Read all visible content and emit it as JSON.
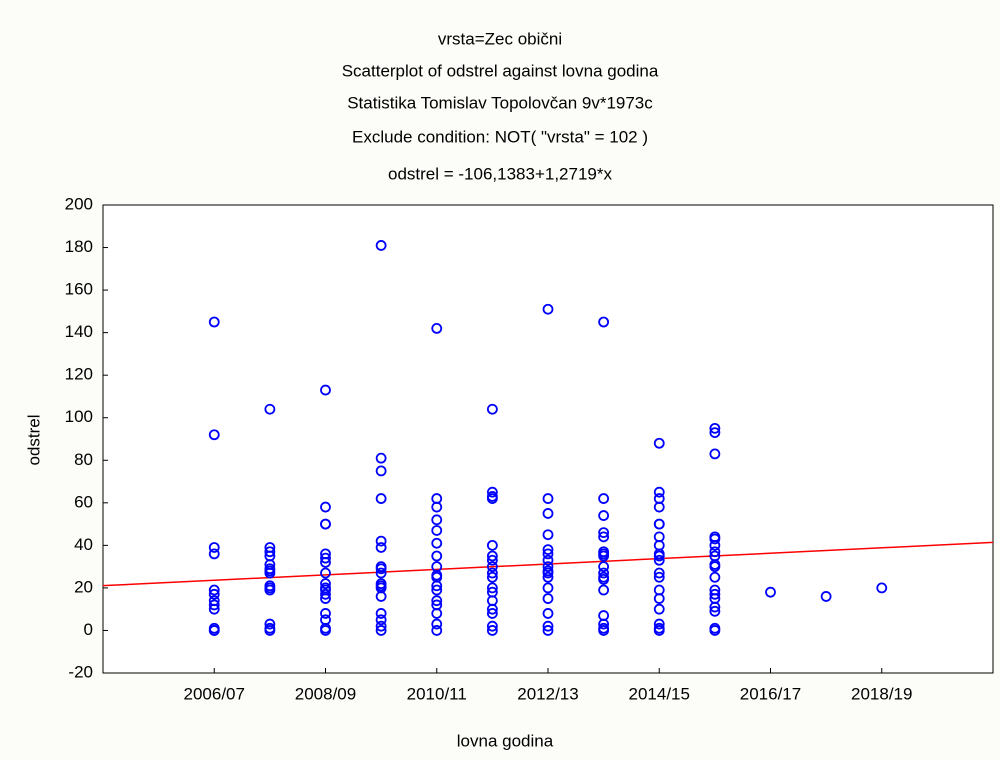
{
  "chart_data": {
    "type": "scatter",
    "title": "vrsta=Zec obični",
    "subtitles": [
      "Scatterplot of odstrel against lovna godina",
      "Statistika Tomislav Topolovčan 9v*1973c",
      "Exclude condition: NOT( \"vrsta\" = 102 )",
      "odstrel = -106,1383+1,2719*x"
    ],
    "x_label": "lovna godina",
    "y_label": "odstrel",
    "xlim": [
      100,
      116
    ],
    "xticks": [
      {
        "value": 102,
        "label": "2006/07"
      },
      {
        "value": 104,
        "label": "2008/09"
      },
      {
        "value": 106,
        "label": "2010/11"
      },
      {
        "value": 108,
        "label": "2012/13"
      },
      {
        "value": 110,
        "label": "2014/15"
      },
      {
        "value": 112,
        "label": "2016/17"
      },
      {
        "value": 114,
        "label": "2018/19"
      }
    ],
    "ylim": [
      -20,
      200
    ],
    "yticks": [
      -20,
      0,
      20,
      40,
      60,
      80,
      100,
      120,
      140,
      160,
      180,
      200
    ],
    "fit": {
      "intercept": -106.1383,
      "slope": 1.2719,
      "color": "#ff0000"
    },
    "series": [
      {
        "color": "#0000ff",
        "x": [
          102,
          102,
          102,
          102,
          102,
          102,
          102,
          102,
          102,
          102,
          102,
          102,
          103,
          103,
          103,
          103,
          103,
          103,
          103,
          103,
          103,
          103,
          103,
          103,
          103,
          103,
          104,
          104,
          104,
          104,
          104,
          104,
          104,
          104,
          104,
          104,
          104,
          104,
          104,
          104,
          104,
          104,
          104,
          105,
          105,
          105,
          105,
          105,
          105,
          105,
          105,
          105,
          105,
          105,
          105,
          105,
          105,
          105,
          105,
          105,
          106,
          106,
          106,
          106,
          106,
          106,
          106,
          106,
          106,
          106,
          106,
          106,
          106,
          106,
          106,
          106,
          106,
          107,
          107,
          107,
          107,
          107,
          107,
          107,
          107,
          107,
          107,
          107,
          107,
          107,
          107,
          107,
          107,
          107,
          108,
          108,
          108,
          108,
          108,
          108,
          108,
          108,
          108,
          108,
          108,
          108,
          108,
          108,
          108,
          108,
          109,
          109,
          109,
          109,
          109,
          109,
          109,
          109,
          109,
          109,
          109,
          109,
          109,
          109,
          109,
          109,
          109,
          110,
          110,
          110,
          110,
          110,
          110,
          110,
          110,
          110,
          110,
          110,
          110,
          110,
          110,
          110,
          110,
          110,
          110,
          110,
          111,
          111,
          111,
          111,
          111,
          111,
          111,
          111,
          111,
          111,
          111,
          111,
          111,
          111,
          111,
          111,
          111,
          111,
          112,
          113,
          114
        ],
        "values": [
          145,
          92,
          39,
          36,
          19,
          17,
          14,
          12,
          10,
          1,
          0,
          0,
          104,
          39,
          37,
          35,
          31,
          29,
          28,
          27,
          21,
          20,
          19,
          3,
          1,
          0,
          113,
          58,
          50,
          50,
          36,
          34,
          32,
          27,
          22,
          20,
          19,
          17,
          15,
          8,
          5,
          1,
          0,
          181,
          81,
          75,
          62,
          42,
          39,
          30,
          29,
          27,
          22,
          21,
          20,
          16,
          8,
          5,
          2,
          0,
          142,
          62,
          58,
          52,
          47,
          41,
          35,
          30,
          26,
          25,
          21,
          19,
          14,
          12,
          8,
          3,
          0,
          104,
          65,
          63,
          62,
          40,
          35,
          33,
          30,
          27,
          25,
          20,
          18,
          14,
          10,
          8,
          2,
          0,
          151,
          62,
          55,
          45,
          38,
          36,
          33,
          30,
          28,
          27,
          25,
          20,
          15,
          8,
          2,
          0,
          145,
          62,
          54,
          46,
          44,
          37,
          36,
          35,
          30,
          27,
          25,
          24,
          19,
          7,
          3,
          1,
          0,
          88,
          65,
          62,
          58,
          50,
          50,
          44,
          40,
          36,
          35,
          33,
          27,
          25,
          19,
          15,
          10,
          3,
          1,
          0,
          95,
          93,
          83,
          44,
          43,
          40,
          37,
          35,
          31,
          30,
          25,
          19,
          17,
          15,
          11,
          9,
          1,
          0,
          18,
          16,
          20
        ]
      }
    ]
  }
}
